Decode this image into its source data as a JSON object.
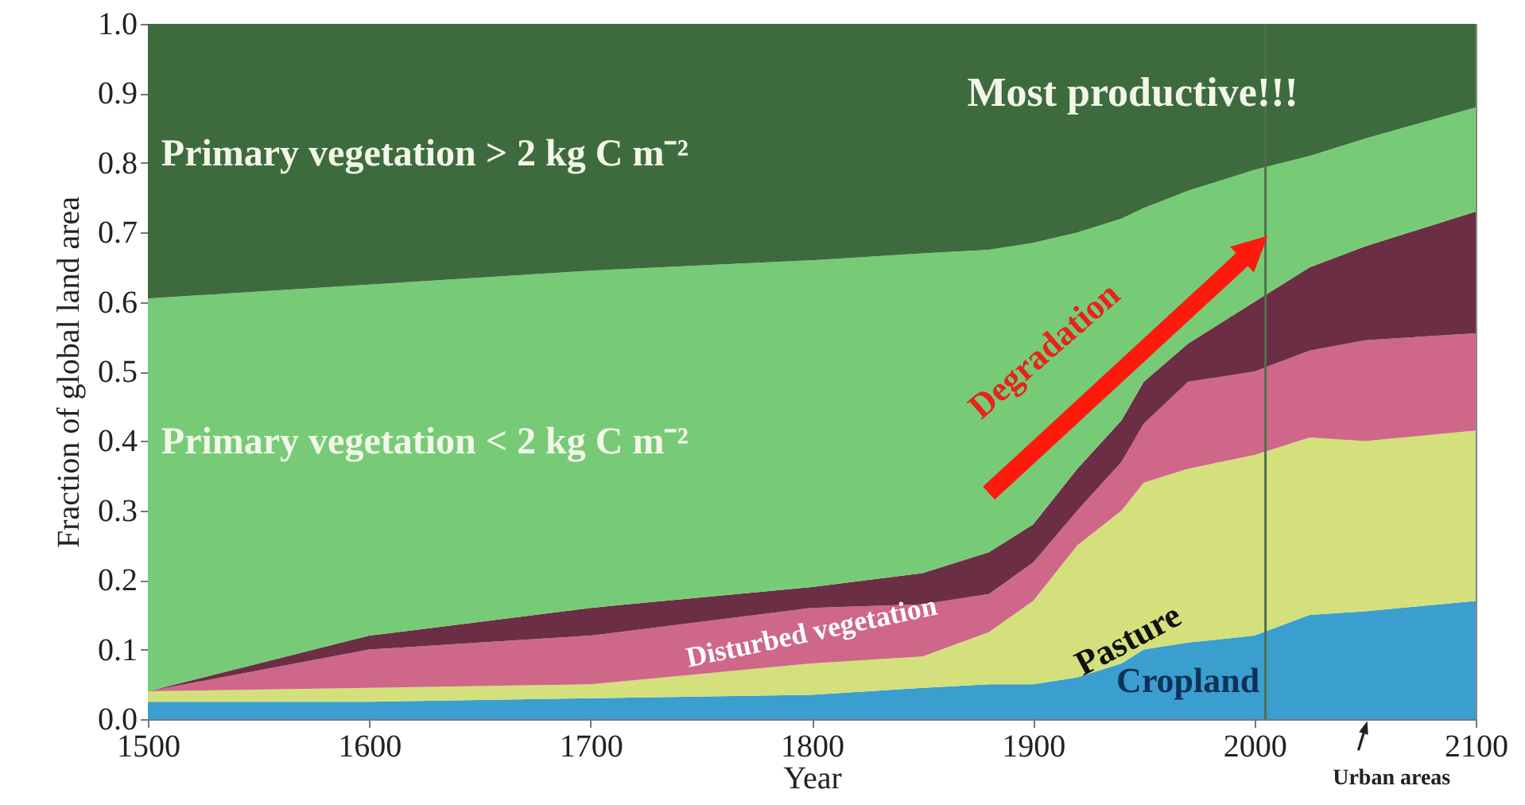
{
  "chart_data": {
    "type": "area",
    "stacked": true,
    "xlabel": "Year",
    "ylabel": "Fraction of global land area",
    "x": [
      1500,
      1600,
      1700,
      1800,
      1850,
      1880,
      1900,
      1920,
      1940,
      1950,
      1970,
      2000,
      2025,
      2050,
      2100
    ],
    "series": [
      {
        "name": "Cropland",
        "color": "#3a9fcf",
        "values": [
          0.025,
          0.025,
          0.03,
          0.035,
          0.045,
          0.05,
          0.05,
          0.06,
          0.08,
          0.1,
          0.11,
          0.12,
          0.15,
          0.155,
          0.17
        ]
      },
      {
        "name": "Pasture",
        "color": "#d4e07c",
        "values": [
          0.015,
          0.02,
          0.02,
          0.045,
          0.045,
          0.075,
          0.12,
          0.19,
          0.22,
          0.24,
          0.25,
          0.26,
          0.255,
          0.245,
          0.245
        ]
      },
      {
        "name": "Disturbed vegetation",
        "color": "#cf6789",
        "values": [
          0,
          0.055,
          0.07,
          0.08,
          0.075,
          0.055,
          0.055,
          0.05,
          0.07,
          0.085,
          0.125,
          0.12,
          0.125,
          0.145,
          0.14
        ]
      },
      {
        "color": "#6b2e45",
        "values": [
          0,
          0.02,
          0.04,
          0.03,
          0.045,
          0.06,
          0.055,
          0.06,
          0.06,
          0.06,
          0.055,
          0.1,
          0.12,
          0.135,
          0.175
        ]
      },
      {
        "name": "Primary vegetation < 2 kg C m⁻²",
        "color": "#77cb77",
        "values": [
          0.565,
          0.505,
          0.485,
          0.47,
          0.46,
          0.435,
          0.405,
          0.34,
          0.29,
          0.25,
          0.22,
          0.19,
          0.16,
          0.155,
          0.15
        ]
      },
      {
        "name": "Primary vegetation > 2 kg C m⁻²",
        "color": "#3e6b3e",
        "values": [
          0.395,
          0.375,
          0.355,
          0.34,
          0.33,
          0.325,
          0.315,
          0.3,
          0.28,
          0.265,
          0.24,
          0.21,
          0.19,
          0.165,
          0.12
        ]
      }
    ],
    "xlim": [
      1500,
      2100
    ],
    "xticks": [
      1500,
      1600,
      1700,
      1800,
      1900,
      2000,
      2100
    ],
    "ylim": [
      0,
      1
    ],
    "yticks": [
      {
        "value": 0,
        "label": "0.0"
      },
      0.1,
      0.2,
      0.3,
      0.4,
      0.5,
      0.6,
      0.7,
      0.8,
      0.9,
      {
        "value": 1,
        "label": "1.0"
      }
    ],
    "ref_lines": [
      {
        "axis": "x",
        "value": 2005,
        "color": "#4f6f4f"
      }
    ],
    "annotations": [
      "Most productive!!!",
      "Degradation",
      "Urban areas"
    ]
  }
}
